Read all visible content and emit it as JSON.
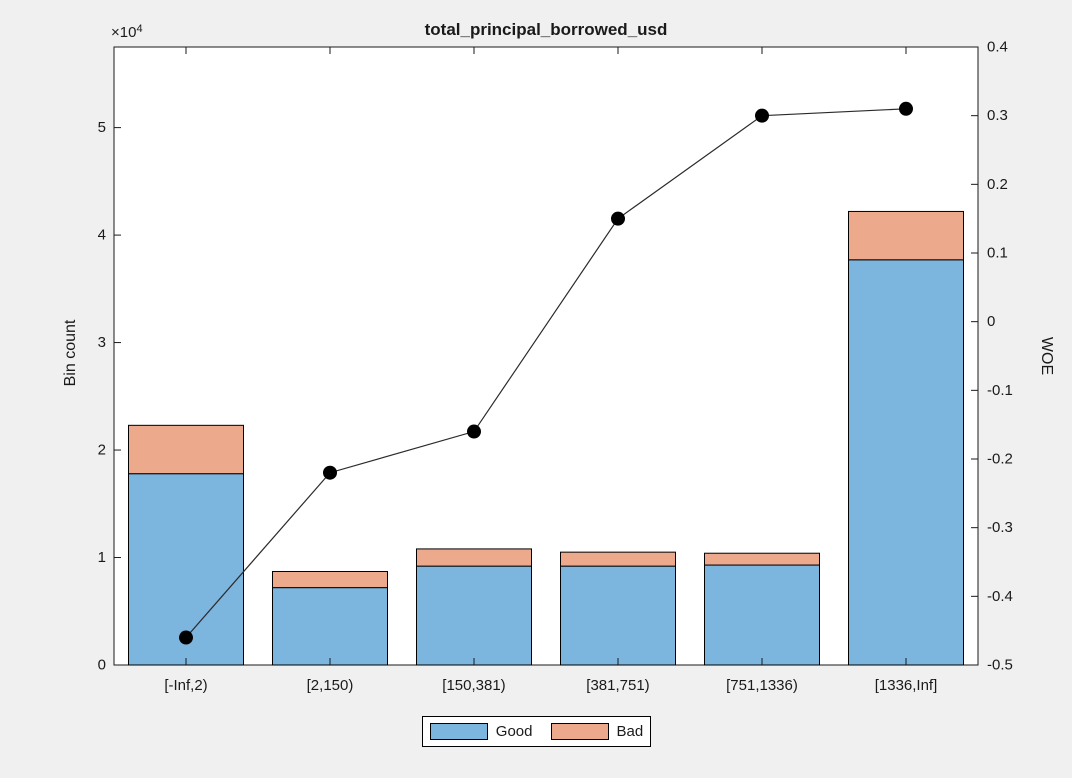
{
  "chart_data": {
    "type": "bar",
    "subtype": "stacked-bars-with-line-overlay",
    "title": "total_principal_borrowed_usd",
    "categories": [
      "[-Inf,2)",
      "[2,150)",
      "[150,381)",
      "[381,751)",
      "[751,1336)",
      "[1336,Inf]"
    ],
    "series": [
      {
        "name": "Good",
        "type": "bar",
        "stack": "bins",
        "axis": "left",
        "color": "#7CB5DE",
        "values": [
          17800,
          7200,
          9200,
          9200,
          9300,
          37700
        ]
      },
      {
        "name": "Bad",
        "type": "bar",
        "stack": "bins",
        "axis": "left",
        "color": "#ECA98B",
        "values": [
          4500,
          1500,
          1600,
          1300,
          1100,
          4500
        ]
      },
      {
        "name": "WOE",
        "type": "line",
        "axis": "right",
        "color": "#000000",
        "marker": "filled-circle",
        "values": [
          -0.46,
          -0.22,
          -0.16,
          0.15,
          0.3,
          0.31
        ]
      }
    ],
    "left_axis": {
      "label": "Bin count",
      "multiplier_base": "×10",
      "multiplier_exp": "4",
      "ticks": [
        0,
        1,
        2,
        3,
        4,
        5
      ],
      "tick_unit": 10000,
      "range": [
        0,
        57500
      ]
    },
    "right_axis": {
      "label": "WOE",
      "ticks": [
        0.4,
        0.3,
        0.2,
        0.1,
        0,
        -0.1,
        -0.2,
        -0.3,
        -0.4,
        -0.5
      ],
      "range": [
        -0.5,
        0.4
      ]
    },
    "legend": {
      "position": "below-chart",
      "entries": [
        "Good",
        "Bad"
      ]
    },
    "grid": false,
    "colors": {
      "figure_background": "#F0F0F0",
      "plot_background": "#FFFFFF",
      "axis": "#1A1A1A"
    }
  }
}
